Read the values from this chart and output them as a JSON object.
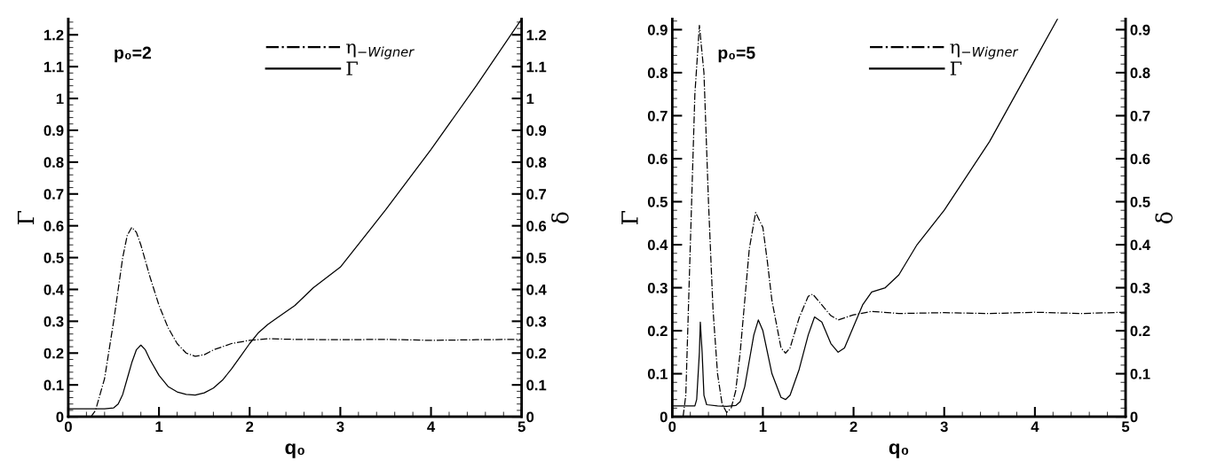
{
  "chart_data": [
    {
      "type": "line",
      "xlabel": "q₀",
      "ylabel": "Γ",
      "y2label": "δ",
      "annotations": [
        "p₀=2"
      ],
      "xlim": [
        0,
        5
      ],
      "xticks": [
        0,
        1,
        2,
        3,
        4,
        5
      ],
      "ylim": [
        0,
        1.25
      ],
      "yticks": [
        0,
        0.1,
        0.2,
        0.3,
        0.4,
        0.5,
        0.6,
        0.7,
        0.8,
        0.9,
        1,
        1.1,
        1.2
      ],
      "y2lim": [
        0,
        1.25
      ],
      "y2ticks": [
        0,
        0.1,
        0.2,
        0.3,
        0.4,
        0.5,
        0.6,
        0.7,
        0.8,
        0.9,
        1,
        1.1,
        1.2
      ],
      "legend": "top right",
      "grid": false,
      "marker": "none",
      "series": [
        {
          "name": "η$_{−Wigner}$",
          "color": "#000000",
          "line_style": "dashdot",
          "x": [
            0.25,
            0.3,
            0.4,
            0.5,
            0.6,
            0.65,
            0.7,
            0.75,
            0.8,
            0.9,
            1.0,
            1.1,
            1.2,
            1.3,
            1.4,
            1.5,
            1.6,
            1.8,
            2.0,
            2.2,
            2.5,
            3.0,
            3.5,
            4.0,
            4.5,
            5.0
          ],
          "values": [
            0,
            0.02,
            0.12,
            0.3,
            0.5,
            0.57,
            0.595,
            0.58,
            0.54,
            0.44,
            0.35,
            0.28,
            0.23,
            0.2,
            0.19,
            0.195,
            0.21,
            0.23,
            0.24,
            0.245,
            0.243,
            0.242,
            0.243,
            0.24,
            0.242,
            0.243
          ]
        },
        {
          "name": "Γ",
          "color": "#000000",
          "line_style": "solid",
          "x": [
            0,
            0.4,
            0.5,
            0.55,
            0.6,
            0.65,
            0.7,
            0.75,
            0.8,
            0.85,
            0.9,
            1.0,
            1.1,
            1.2,
            1.3,
            1.4,
            1.5,
            1.6,
            1.7,
            1.8,
            1.9,
            2.0,
            2.1,
            2.2,
            2.3,
            2.5,
            2.7,
            3.0,
            3.5,
            4.0,
            4.5,
            5.0
          ],
          "values": [
            0.025,
            0.025,
            0.028,
            0.04,
            0.07,
            0.12,
            0.17,
            0.21,
            0.225,
            0.21,
            0.18,
            0.13,
            0.095,
            0.078,
            0.07,
            0.068,
            0.075,
            0.09,
            0.115,
            0.15,
            0.19,
            0.23,
            0.265,
            0.29,
            0.31,
            0.35,
            0.405,
            0.47,
            0.65,
            0.84,
            1.04,
            1.25
          ]
        }
      ]
    },
    {
      "type": "line",
      "xlabel": "q₀",
      "ylabel": "Γ",
      "y2label": "δ",
      "annotations": [
        "p₀=5"
      ],
      "xlim": [
        0,
        5
      ],
      "xticks": [
        0,
        1,
        2,
        3,
        4,
        5
      ],
      "ylim": [
        0,
        0.925
      ],
      "yticks": [
        0,
        0.1,
        0.2,
        0.3,
        0.4,
        0.5,
        0.6,
        0.7,
        0.8,
        0.9
      ],
      "y2lim": [
        0,
        0.925
      ],
      "y2ticks": [
        0,
        0.1,
        0.2,
        0.3,
        0.4,
        0.5,
        0.6,
        0.7,
        0.8,
        0.9
      ],
      "legend": "top right",
      "grid": false,
      "marker": "none",
      "series": [
        {
          "name": "η$_{−Wigner}$",
          "color": "#000000",
          "line_style": "dashdot",
          "x": [
            0.12,
            0.15,
            0.2,
            0.25,
            0.3,
            0.35,
            0.4,
            0.45,
            0.5,
            0.55,
            0.6,
            0.65,
            0.7,
            0.75,
            0.8,
            0.85,
            0.92,
            1.0,
            1.05,
            1.1,
            1.2,
            1.25,
            1.3,
            1.4,
            1.5,
            1.55,
            1.65,
            1.75,
            1.83,
            2.0,
            2.2,
            2.5,
            3.0,
            3.5,
            4.0,
            4.5,
            5.0
          ],
          "values": [
            0,
            0.05,
            0.4,
            0.75,
            0.91,
            0.8,
            0.5,
            0.25,
            0.1,
            0.03,
            0.01,
            0.02,
            0.06,
            0.15,
            0.27,
            0.39,
            0.475,
            0.44,
            0.36,
            0.27,
            0.16,
            0.148,
            0.16,
            0.23,
            0.28,
            0.285,
            0.26,
            0.235,
            0.225,
            0.237,
            0.245,
            0.24,
            0.242,
            0.24,
            0.243,
            0.24,
            0.243
          ]
        },
        {
          "name": "Γ",
          "color": "#000000",
          "line_style": "solid",
          "x": [
            0,
            0.25,
            0.27,
            0.3,
            0.31,
            0.33,
            0.35,
            0.38,
            0.5,
            0.6,
            0.7,
            0.75,
            0.8,
            0.85,
            0.9,
            0.95,
            1.0,
            1.05,
            1.1,
            1.2,
            1.25,
            1.3,
            1.4,
            1.5,
            1.57,
            1.65,
            1.75,
            1.83,
            1.9,
            2.0,
            2.1,
            2.2,
            2.35,
            2.5,
            2.7,
            3.0,
            3.5,
            4.0,
            4.25
          ],
          "values": [
            0.025,
            0.025,
            0.04,
            0.15,
            0.22,
            0.15,
            0.05,
            0.028,
            0.025,
            0.024,
            0.026,
            0.035,
            0.07,
            0.13,
            0.19,
            0.225,
            0.2,
            0.15,
            0.1,
            0.045,
            0.04,
            0.05,
            0.11,
            0.19,
            0.232,
            0.22,
            0.17,
            0.15,
            0.16,
            0.21,
            0.26,
            0.29,
            0.3,
            0.33,
            0.4,
            0.48,
            0.64,
            0.83,
            0.925
          ]
        }
      ]
    }
  ]
}
